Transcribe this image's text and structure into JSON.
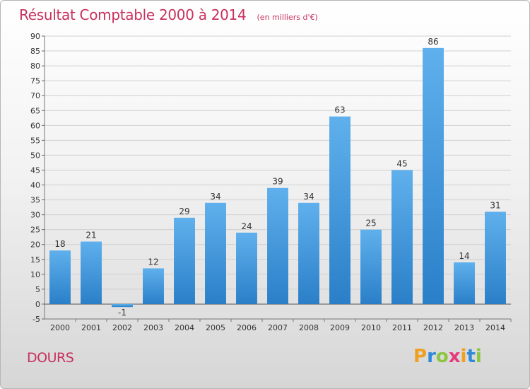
{
  "chart_data": {
    "type": "bar",
    "title": "Résultat Comptable 2000 à 2014",
    "subtitle": "(en milliers d'€)",
    "categories": [
      "2000",
      "2001",
      "2002",
      "2003",
      "2004",
      "2005",
      "2006",
      "2007",
      "2008",
      "2009",
      "2010",
      "2011",
      "2012",
      "2013",
      "2014"
    ],
    "values": [
      18,
      21,
      -1,
      12,
      29,
      34,
      24,
      39,
      34,
      63,
      25,
      45,
      86,
      14,
      31
    ],
    "ylim": [
      -5,
      90
    ],
    "yticks": [
      -5,
      0,
      5,
      10,
      15,
      20,
      25,
      30,
      35,
      40,
      45,
      50,
      55,
      60,
      65,
      70,
      75,
      80,
      85,
      90
    ],
    "grid": true,
    "bar_color": "#3a8fd6"
  },
  "place_name": "DOURS",
  "logo": {
    "letters": [
      "P",
      "r",
      "o",
      "x",
      "i",
      "t",
      "i"
    ],
    "colors": [
      "#f0a020",
      "#2e8ad8",
      "#8cc63f",
      "#e53b7a",
      "#f0a020",
      "#2e8ad8",
      "#8cc63f"
    ]
  }
}
